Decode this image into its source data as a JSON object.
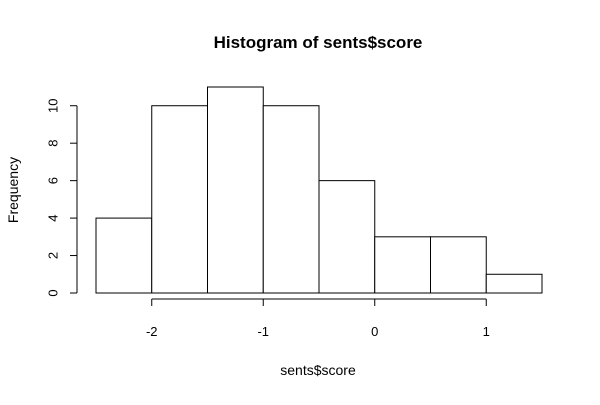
{
  "chart_data": {
    "type": "bar",
    "title": "Histogram of sents$score",
    "xlabel": "sents$score",
    "ylabel": "Frequency",
    "bins": [
      {
        "from": -2.5,
        "to": -2.0,
        "count": 4
      },
      {
        "from": -2.0,
        "to": -1.5,
        "count": 10
      },
      {
        "from": -1.5,
        "to": -1.0,
        "count": 11
      },
      {
        "from": -1.0,
        "to": -0.5,
        "count": 10
      },
      {
        "from": -0.5,
        "to": 0.0,
        "count": 6
      },
      {
        "from": 0.0,
        "to": 0.5,
        "count": 3
      },
      {
        "from": 0.5,
        "to": 1.0,
        "count": 3
      },
      {
        "from": 1.0,
        "to": 1.5,
        "count": 1
      }
    ],
    "xlim": [
      -2.5,
      1.5
    ],
    "ylim": [
      0,
      11
    ],
    "x_ticks": [
      -2,
      -1,
      0,
      1
    ],
    "x_tick_labels": [
      "-2",
      "-1",
      "0",
      "1"
    ],
    "y_ticks": [
      0,
      2,
      4,
      6,
      8,
      10
    ],
    "y_tick_labels": [
      "0",
      "2",
      "4",
      "6",
      "8",
      "10"
    ],
    "grid": false,
    "legend": "none",
    "colors": {
      "bar_fill": "#ffffff",
      "bar_edge": "#000000",
      "background": "#ffffff"
    }
  }
}
